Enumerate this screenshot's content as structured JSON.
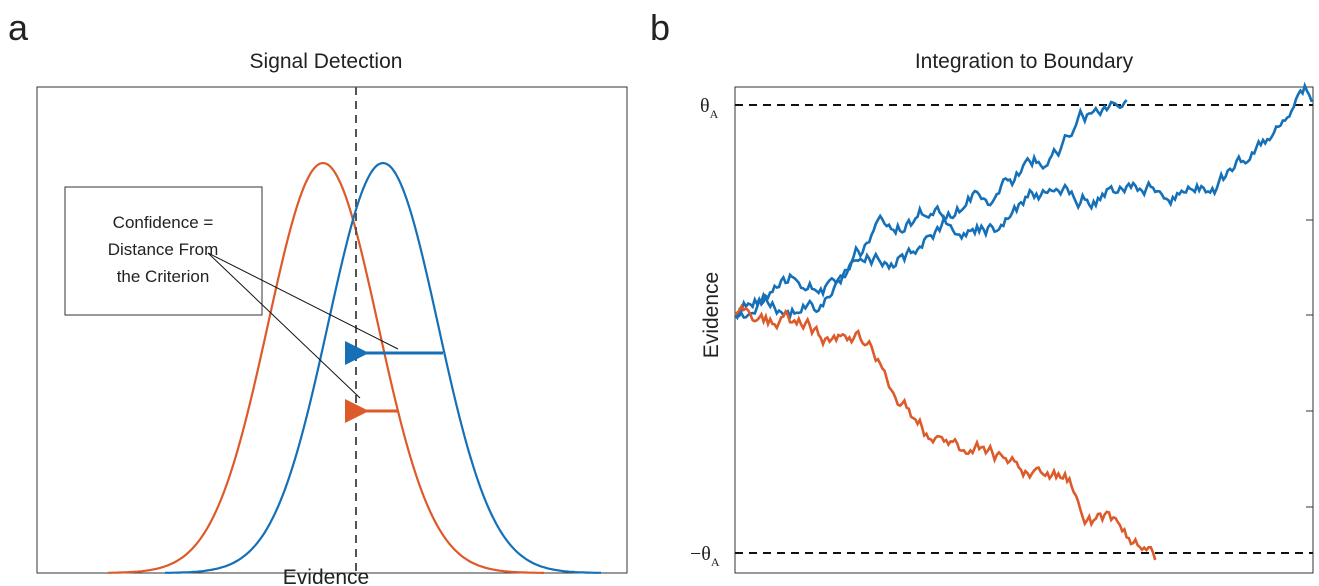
{
  "panel_a": {
    "letter": "a",
    "title": "Signal Detection",
    "box_lines": [
      "Confidence =",
      "Distance From",
      "the Criterion"
    ],
    "x_label": "Evidence"
  },
  "panel_b": {
    "letter": "b",
    "title": "Integration to Boundary",
    "y_label": "Evidence",
    "upper_bound": {
      "symbol": "θ",
      "subscript": "A"
    },
    "lower_bound": {
      "symbol": "−θ",
      "subscript": "A"
    }
  }
}
